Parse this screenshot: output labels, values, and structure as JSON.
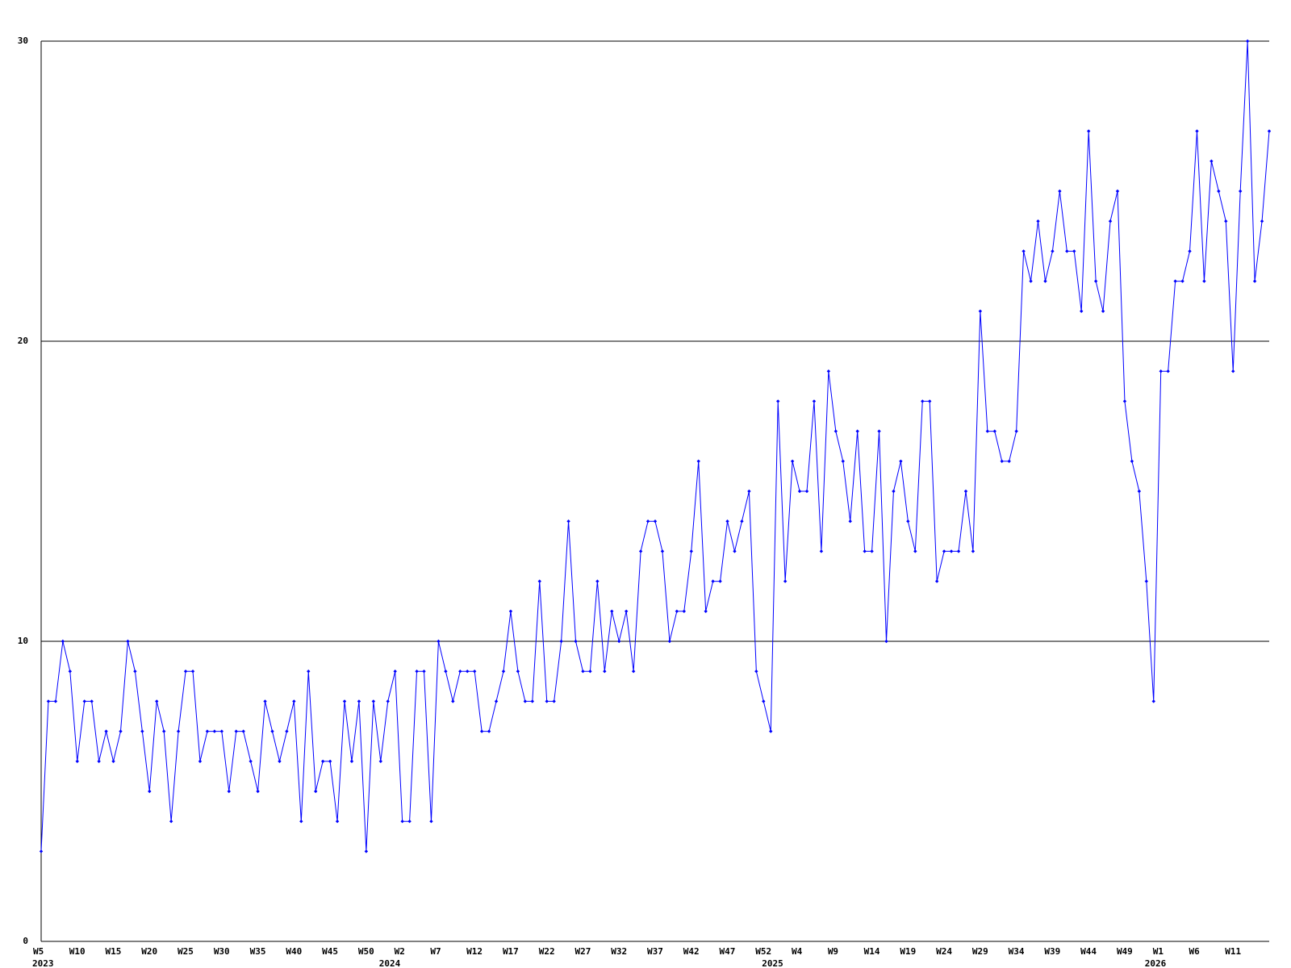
{
  "chart_data": {
    "type": "line",
    "color": "#0000ff",
    "grid": true,
    "ylim": [
      0,
      30
    ],
    "yticks": [
      0,
      10,
      20,
      30
    ],
    "categories": [
      "W5",
      null,
      null,
      null,
      null,
      "W10",
      null,
      null,
      null,
      null,
      "W15",
      null,
      null,
      null,
      null,
      "W20",
      null,
      null,
      null,
      null,
      "W25",
      null,
      null,
      null,
      null,
      "W30",
      null,
      null,
      null,
      null,
      "W35",
      null,
      null,
      null,
      null,
      "W40",
      null,
      null,
      null,
      null,
      "W45",
      null,
      null,
      null,
      null,
      "W50",
      null,
      null,
      null,
      null,
      "W2",
      null,
      null,
      null,
      null,
      "W7",
      null,
      null,
      null,
      null,
      "W12",
      null,
      null,
      null,
      null,
      "W17",
      null,
      null,
      null,
      null,
      "W22",
      null,
      null,
      null,
      null,
      "W27",
      null,
      null,
      null,
      null,
      "W32",
      null,
      null,
      null,
      null,
      "W37",
      null,
      null,
      null,
      null,
      "W42",
      null,
      null,
      null,
      null,
      "W47",
      null,
      null,
      null,
      null,
      "W52",
      null,
      null,
      null,
      null,
      "W4",
      null,
      null,
      null,
      null,
      "W9",
      null,
      null,
      null,
      null,
      "W14",
      null,
      null,
      null,
      null,
      "W19",
      null,
      null,
      null,
      null,
      "W24",
      null,
      null,
      null,
      null,
      "W29",
      null,
      null,
      null,
      null,
      "W34",
      null,
      null,
      null,
      null,
      "W39",
      null,
      null,
      null,
      null,
      "W44",
      null,
      null,
      null,
      null,
      "W49",
      null,
      null,
      null,
      null,
      "W1",
      null,
      null,
      null,
      null,
      "W6",
      null,
      null,
      null,
      null,
      "W11",
      null,
      null,
      null,
      null,
      null
    ],
    "category_years": [
      "2023",
      null,
      null,
      null,
      null,
      null,
      null,
      null,
      null,
      null,
      null,
      null,
      null,
      null,
      null,
      null,
      null,
      null,
      null,
      null,
      null,
      null,
      null,
      null,
      null,
      null,
      null,
      null,
      null,
      null,
      null,
      null,
      null,
      null,
      null,
      null,
      null,
      null,
      null,
      null,
      null,
      null,
      null,
      null,
      null,
      null,
      null,
      null,
      "2024",
      null,
      null,
      null,
      null,
      null,
      null,
      null,
      null,
      null,
      null,
      null,
      null,
      null,
      null,
      null,
      null,
      null,
      null,
      null,
      null,
      null,
      null,
      null,
      null,
      null,
      null,
      null,
      null,
      null,
      null,
      null,
      null,
      null,
      null,
      null,
      null,
      null,
      null,
      null,
      null,
      null,
      null,
      null,
      null,
      null,
      null,
      null,
      null,
      null,
      null,
      null,
      null,
      "2025",
      null,
      null,
      null,
      null,
      null,
      null,
      null,
      null,
      null,
      null,
      null,
      null,
      null,
      null,
      null,
      null,
      null,
      null,
      null,
      null,
      null,
      null,
      null,
      null,
      null,
      null,
      null,
      null,
      null,
      null,
      null,
      null,
      null,
      null,
      null,
      null,
      null,
      null,
      null,
      null,
      null,
      null,
      null,
      null,
      null,
      null,
      null,
      null,
      null,
      null,
      null,
      null,
      "2026",
      null,
      null,
      null,
      null,
      null,
      null,
      null,
      null,
      null,
      null,
      null,
      null,
      null,
      null,
      null,
      null
    ],
    "values": [
      3,
      8,
      8,
      10,
      9,
      6,
      8,
      8,
      6,
      7,
      6,
      7,
      10,
      9,
      7,
      5,
      8,
      7,
      4,
      7,
      9,
      9,
      6,
      7,
      7,
      7,
      5,
      7,
      7,
      6,
      5,
      8,
      7,
      6,
      7,
      8,
      4,
      9,
      5,
      6,
      6,
      4,
      8,
      6,
      8,
      3,
      8,
      6,
      8,
      9,
      4,
      4,
      9,
      9,
      4,
      10,
      9,
      8,
      9,
      9,
      9,
      7,
      7,
      8,
      9,
      11,
      9,
      8,
      8,
      12,
      8,
      8,
      10,
      14,
      10,
      9,
      9,
      12,
      9,
      11,
      10,
      11,
      9,
      13,
      14,
      14,
      13,
      10,
      11,
      11,
      13,
      16,
      11,
      12,
      12,
      14,
      13,
      14,
      15,
      9,
      8,
      7,
      18,
      12,
      16,
      15,
      15,
      18,
      13,
      19,
      17,
      16,
      14,
      17,
      13,
      13,
      17,
      10,
      15,
      16,
      14,
      13,
      18,
      18,
      12,
      13,
      13,
      13,
      15,
      13,
      21,
      17,
      17,
      16,
      16,
      17,
      23,
      22,
      24,
      22,
      23,
      25,
      23,
      23,
      21,
      27,
      22,
      21,
      24,
      25,
      18,
      16,
      15,
      12,
      8,
      19,
      19,
      22,
      22,
      23,
      27,
      22,
      26,
      25,
      24,
      19,
      25,
      30,
      22,
      24,
      27
    ]
  }
}
